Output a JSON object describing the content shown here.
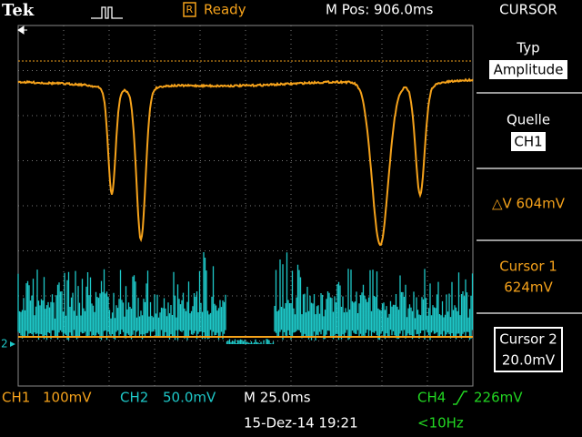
{
  "header": {
    "brand": "Tek",
    "trigger_state": "Ready",
    "position": "M Pos: 906.0ms",
    "menu": "CURSOR"
  },
  "menu": {
    "type_label": "Typ",
    "type_value": "Amplitude",
    "source_label": "Quelle",
    "source_value": "CH1",
    "delta": "△V 604mV",
    "cursor1_label": "Cursor 1",
    "cursor1_value": "624mV",
    "cursor2_label": "Cursor 2",
    "cursor2_value": "20.0mV"
  },
  "footer": {
    "ch1": "CH1",
    "ch1_scale": "100mV",
    "ch2": "CH2",
    "ch2_scale": "50.0mV",
    "timebase": "M 25.0ms",
    "ch4": "CH4",
    "trigger_level": "226mV",
    "datetime": "15-Dez-14 19:21",
    "frequency": "<10Hz"
  },
  "markers": {
    "ch2_marker": "2"
  }
}
